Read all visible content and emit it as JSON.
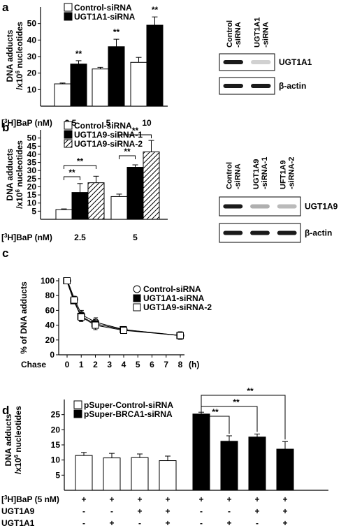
{
  "figure": {
    "colors": {
      "open": "#ffffff",
      "filled": "#000000",
      "blot_bg": "#ffffff",
      "band": "#1a1a1a"
    }
  },
  "panels": {
    "a": {
      "letter": "a"
    },
    "b": {
      "letter": "b"
    },
    "c": {
      "letter": "c"
    },
    "d": {
      "letter": "d"
    }
  },
  "chart_data": [
    {
      "panel": "a",
      "type": "bar",
      "ylabel_line1": "DNA adducts",
      "ylabel_line2": "/x10",
      "ylabel_sup": "6",
      "ylabel_line2_tail": " nucleotides",
      "xrow_prefix": "[",
      "xrow_sup": "3",
      "xrow_label": "H]BaP (nM)",
      "ylim": [
        0,
        60
      ],
      "yticks": [
        10,
        20,
        30,
        40,
        50
      ],
      "categories": [
        "2.5",
        "5",
        "10"
      ],
      "series": [
        {
          "name": "Control-siRNA",
          "fill": "open",
          "values": [
            13.5,
            22.5,
            26.5
          ],
          "errors": [
            0.5,
            1.0,
            3.0
          ]
        },
        {
          "name": "UGT1A1-siRNA",
          "fill": "filled",
          "values": [
            25.5,
            36,
            49
          ],
          "errors": [
            2.0,
            4.5,
            5.0
          ]
        }
      ],
      "annotations": [
        {
          "category": 0,
          "series": 1,
          "text": "**"
        },
        {
          "category": 1,
          "series": 1,
          "text": "**"
        },
        {
          "category": 2,
          "series": 1,
          "text": "**"
        }
      ],
      "blot": {
        "lanes": [
          "Control",
          "-siRNA",
          "UGT1A1",
          "-siRNA"
        ],
        "bands": [
          {
            "label": "UGT1A1",
            "intensity": [
              1.0,
              0.2
            ]
          },
          {
            "label": "β-actin",
            "intensity": [
              1.0,
              1.0
            ]
          }
        ]
      }
    },
    {
      "panel": "b",
      "type": "bar",
      "ylabel_line1": "DNA adducts",
      "ylabel_line2": "/x10",
      "ylabel_sup": "6",
      "ylabel_line2_tail": " nucleotides",
      "xrow_prefix": "[",
      "xrow_sup": "3",
      "xrow_label": "H]BaP (nM)",
      "ylim": [
        0,
        55
      ],
      "yticks": [
        5,
        10,
        15,
        20,
        25,
        30,
        35,
        40,
        45,
        50
      ],
      "categories": [
        "2.5",
        "5"
      ],
      "series": [
        {
          "name": "Control-siRNA",
          "fill": "open",
          "values": [
            6,
            14
          ],
          "errors": [
            0.4,
            1.5
          ]
        },
        {
          "name": "UGT1A9-siRNA-1",
          "fill": "filled",
          "values": [
            16.5,
            32
          ],
          "errors": [
            5.5,
            1.5
          ]
        },
        {
          "name": "UGT1A9-siRNA-2",
          "fill": "hatched",
          "values": [
            22.5,
            41.5
          ],
          "errors": [
            4.0,
            7.0
          ]
        }
      ],
      "brackets": [
        {
          "category": 0,
          "from": 0,
          "to": 1,
          "text": "**"
        },
        {
          "category": 0,
          "from": 0,
          "to": 2,
          "text": "**"
        },
        {
          "category": 1,
          "from": 0,
          "to": 1,
          "text": "**"
        },
        {
          "category": 1,
          "from": 0,
          "to": 2,
          "text": "**"
        }
      ],
      "blot": {
        "lanes": [
          "Control",
          "-siRNA",
          "UGT1A9",
          "-siRNA-1",
          "UFT1A9",
          "-siRNA-2"
        ],
        "bands": [
          {
            "label": "UGT1A9",
            "intensity": [
              1.0,
              0.35,
              0.3
            ]
          },
          {
            "label": "β-actin",
            "intensity": [
              1.0,
              1.0,
              1.0
            ]
          }
        ]
      }
    },
    {
      "panel": "c",
      "type": "line",
      "ylabel": "% of DNA adducts",
      "xlabel": "Chase",
      "xunit": "(h)",
      "xlim": [
        0,
        8
      ],
      "xticks": [
        0,
        1,
        2,
        3,
        4,
        5,
        6,
        7,
        8
      ],
      "ylim": [
        0,
        100
      ],
      "yticks": [
        0,
        20,
        40,
        60,
        80,
        100
      ],
      "x": [
        0,
        0.5,
        1,
        2,
        4,
        8
      ],
      "series": [
        {
          "name": "Control-siRNA",
          "marker": "circle",
          "values": [
            100,
            75,
            54,
            44,
            34,
            26
          ],
          "errors": [
            0,
            4,
            6,
            6,
            4,
            5
          ]
        },
        {
          "name": "UGT1A1-siRNA",
          "marker": "filled-square",
          "values": [
            100,
            73,
            52,
            42,
            34,
            26
          ],
          "errors": [
            0,
            4,
            6,
            6,
            4,
            5
          ]
        },
        {
          "name": "UGT1A9-siRNA-2",
          "marker": "open-square",
          "values": [
            100,
            74,
            51,
            40,
            33,
            26
          ],
          "errors": [
            0,
            4,
            6,
            6,
            4,
            5
          ]
        }
      ]
    },
    {
      "panel": "d",
      "type": "bar",
      "ylabel_line1": "DNA adducts",
      "ylabel_line2": "/x10",
      "ylabel_sup": "6",
      "ylabel_line2_tail": " nucleotides",
      "ylim": [
        0,
        30
      ],
      "yticks": [
        5,
        10,
        15,
        20,
        25
      ],
      "values": [
        11.5,
        10.7,
        10.8,
        9.8,
        25.2,
        16.2,
        17.6,
        13.6
      ],
      "errors": [
        1.0,
        1.5,
        1.2,
        1.5,
        0.6,
        1.8,
        1.0,
        2.5
      ],
      "fills": [
        "open",
        "open",
        "open",
        "open",
        "filled",
        "filled",
        "filled",
        "filled"
      ],
      "series": [
        {
          "name": "pSuper-Control-siRNA",
          "fill": "open"
        },
        {
          "name": "pSuper-BRCA1-siRNA",
          "fill": "filled"
        }
      ],
      "rows": [
        {
          "prefix": "[",
          "sup": "3",
          "label": "H]BaP (5 nM)",
          "values": [
            "+",
            "+",
            "+",
            "+",
            "+",
            "+",
            "+",
            "+"
          ]
        },
        {
          "prefix": "",
          "sup": "",
          "label": "UGT1A9",
          "values": [
            "-",
            "-",
            "+",
            "+",
            "-",
            "-",
            "+",
            "+"
          ]
        },
        {
          "prefix": "",
          "sup": "",
          "label": "UGT1A1",
          "values": [
            "-",
            "+",
            "-",
            "+",
            "-",
            "+",
            "-",
            "+"
          ]
        }
      ],
      "brackets": [
        {
          "from": 4,
          "to": 5,
          "text": "**"
        },
        {
          "from": 4,
          "to": 6,
          "text": "**"
        },
        {
          "from": 4,
          "to": 7,
          "text": "**"
        }
      ]
    }
  ]
}
